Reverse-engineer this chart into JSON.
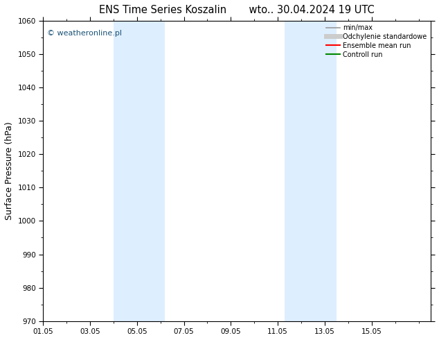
{
  "title": "ENS Time Series Koszalin       wto.. 30.04.2024 19 UTC",
  "ylabel": "Surface Pressure (hPa)",
  "ylim": [
    970,
    1060
  ],
  "yticks": [
    970,
    980,
    990,
    1000,
    1010,
    1020,
    1030,
    1040,
    1050,
    1060
  ],
  "xlim_start": 0.0,
  "xlim_end": 16.5,
  "xtick_labels": [
    "01.05",
    "03.05",
    "05.05",
    "07.05",
    "09.05",
    "11.05",
    "13.05",
    "15.05"
  ],
  "xtick_positions": [
    0,
    2,
    4,
    6,
    8,
    10,
    12,
    14
  ],
  "shade_bands": [
    {
      "x_start": 3.0,
      "x_end": 5.2,
      "color": "#ddeeff"
    },
    {
      "x_start": 10.3,
      "x_end": 12.5,
      "color": "#ddeeff"
    }
  ],
  "watermark_text": "© weatheronline.pl",
  "watermark_color": "#1a5276",
  "legend_entries": [
    {
      "label": "min/max",
      "color": "#999999",
      "lw": 1.2,
      "ls": "-"
    },
    {
      "label": "Odchylenie standardowe",
      "color": "#cccccc",
      "lw": 5,
      "ls": "-"
    },
    {
      "label": "Ensemble mean run",
      "color": "#ff0000",
      "lw": 1.5,
      "ls": "-"
    },
    {
      "label": "Controll run",
      "color": "#008800",
      "lw": 1.5,
      "ls": "-"
    }
  ],
  "bg_color": "#ffffff",
  "plot_bg_color": "#ffffff",
  "tick_fontsize": 7.5,
  "label_fontsize": 9,
  "title_fontsize": 10.5
}
